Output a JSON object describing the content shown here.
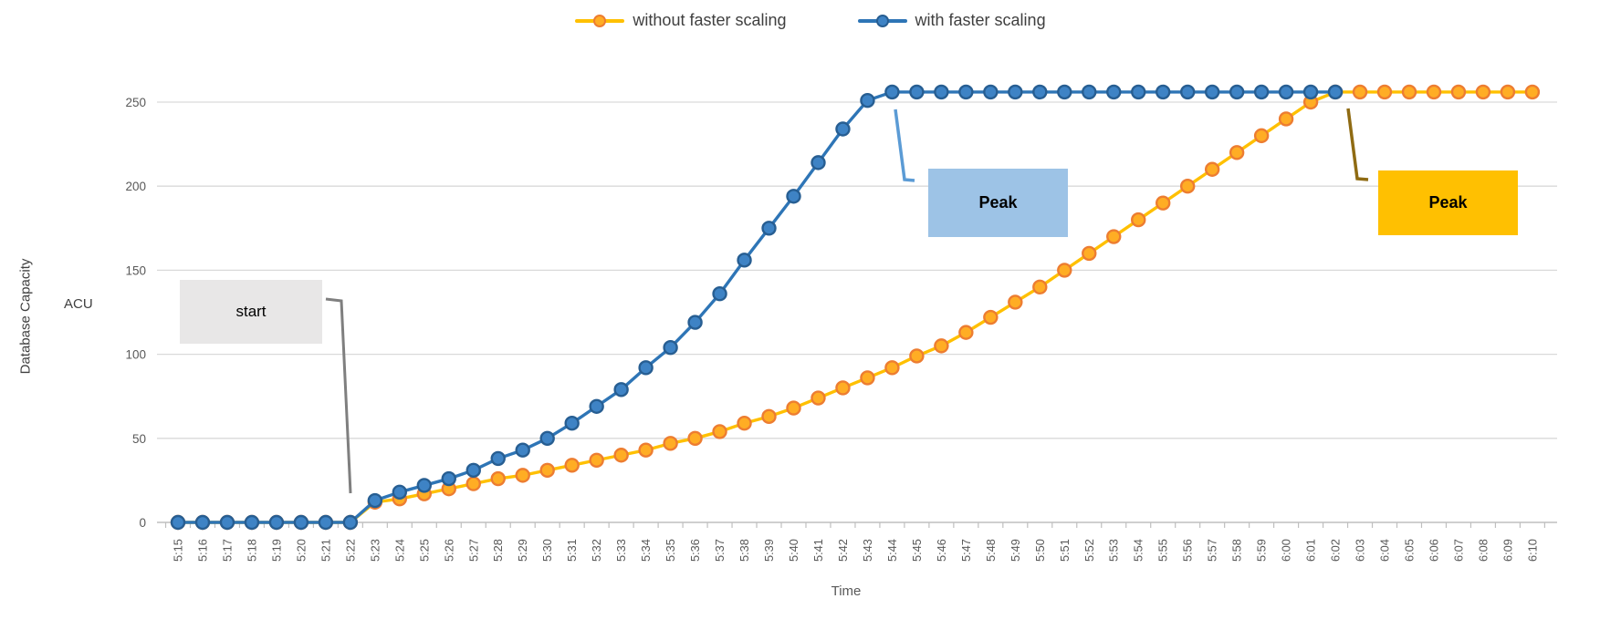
{
  "chart_data": {
    "type": "line",
    "title": "",
    "xlabel": "Time",
    "ylabel": "Database Capacity",
    "ylabel_units": "ACU",
    "ylim": [
      0,
      260
    ],
    "yticks": [
      0,
      50,
      100,
      150,
      200,
      250
    ],
    "grid": true,
    "legend_position": "top-center",
    "categories": [
      "5:15",
      "5:16",
      "5:17",
      "5:18",
      "5:19",
      "5:20",
      "5:21",
      "5:22",
      "5:23",
      "5:24",
      "5:25",
      "5:26",
      "5:27",
      "5:28",
      "5:29",
      "5:30",
      "5:31",
      "5:32",
      "5:33",
      "5:34",
      "5:35",
      "5:36",
      "5:37",
      "5:38",
      "5:39",
      "5:40",
      "5:41",
      "5:42",
      "5:43",
      "5:44",
      "5:45",
      "5:46",
      "5:47",
      "5:48",
      "5:49",
      "5:50",
      "5:51",
      "5:52",
      "5:53",
      "5:54",
      "5:55",
      "5:56",
      "5:57",
      "5:58",
      "5:59",
      "6:00",
      "6:01",
      "6:02",
      "6:03",
      "6:04",
      "6:05",
      "6:06",
      "6:07",
      "6:08",
      "6:09",
      "6:10"
    ],
    "series": [
      {
        "name": "without faster scaling",
        "line_color": "#FFC000",
        "marker_fill": "#FFAD24",
        "marker_edge": "#ED7D31",
        "values": [
          0,
          0,
          0,
          0,
          0,
          0,
          0,
          0,
          12,
          14,
          17,
          20,
          23,
          26,
          28,
          31,
          34,
          37,
          40,
          43,
          47,
          50,
          54,
          59,
          63,
          68,
          74,
          80,
          86,
          92,
          99,
          105,
          113,
          122,
          131,
          140,
          150,
          160,
          170,
          180,
          190,
          200,
          210,
          220,
          230,
          240,
          250,
          256,
          256,
          256,
          256,
          256,
          256,
          256,
          256,
          256
        ]
      },
      {
        "name": "with faster scaling",
        "line_color": "#2E75B6",
        "marker_fill": "#3E83C5",
        "marker_edge": "#275E92",
        "values": [
          0,
          0,
          0,
          0,
          0,
          0,
          0,
          0,
          13,
          18,
          22,
          26,
          31,
          38,
          43,
          50,
          59,
          69,
          79,
          92,
          104,
          119,
          136,
          156,
          175,
          194,
          214,
          234,
          251,
          256,
          256,
          256,
          256,
          256,
          256,
          256,
          256,
          256,
          256,
          256,
          256,
          256,
          256,
          256,
          256,
          256,
          256,
          256,
          null,
          null,
          null,
          null,
          null,
          null,
          null,
          null
        ]
      }
    ]
  },
  "annotations": {
    "start": {
      "label": "start",
      "box_fill": "#E8E7E7",
      "line_color": "#7F7F7F"
    },
    "peak_fast": {
      "label": "Peak",
      "box_fill": "#9DC3E6",
      "line_color": "#5B9BD5"
    },
    "peak_slow": {
      "label": "Peak",
      "box_fill": "#FFC001",
      "line_color": "#8F6B13"
    }
  },
  "axis_style": {
    "grid_color": "#D9D9D9",
    "axis_color": "#BFBFBF",
    "tick_label_color": "#595959"
  }
}
